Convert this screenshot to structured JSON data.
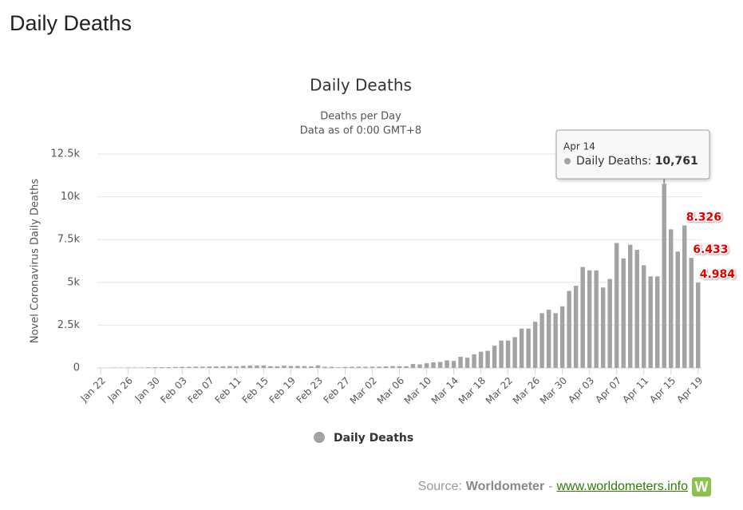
{
  "page_title": "Daily Deaths",
  "chart_data": {
    "type": "bar",
    "title": "Daily Deaths",
    "subtitle": [
      "Deaths per Day",
      "Data as of 0:00 GMT+8"
    ],
    "y_label": "Novel Coronavirus Daily Deaths",
    "categories": [
      "Jan 22",
      null,
      null,
      null,
      "Jan 26",
      null,
      null,
      null,
      "Jan 30",
      null,
      null,
      null,
      "Feb 03",
      null,
      null,
      null,
      "Feb 07",
      null,
      null,
      null,
      "Feb 11",
      null,
      null,
      null,
      "Feb 15",
      null,
      null,
      null,
      "Feb 19",
      null,
      null,
      null,
      "Feb 23",
      null,
      null,
      null,
      "Feb 27",
      null,
      null,
      null,
      "Mar 02",
      null,
      null,
      null,
      "Mar 06",
      null,
      null,
      null,
      "Mar 10",
      null,
      null,
      null,
      "Mar 14",
      null,
      null,
      null,
      "Mar 18",
      null,
      null,
      null,
      "Mar 22",
      null,
      null,
      null,
      "Mar 26",
      null,
      null,
      null,
      "Mar 30",
      null,
      null,
      null,
      "Apr 03",
      null,
      null,
      null,
      "Apr 07",
      null,
      null,
      null,
      "Apr 11",
      null,
      null,
      null,
      "Apr 15",
      null,
      null,
      null,
      "Apr 19"
    ],
    "series": [
      {
        "name": "Daily Deaths",
        "color": "#a3a3a3",
        "values": [
          0,
          8,
          16,
          14,
          26,
          26,
          26,
          38,
          43,
          46,
          45,
          58,
          64,
          66,
          73,
          73,
          86,
          89,
          97,
          108,
          97,
          121,
          143,
          143,
          142,
          105,
          98,
          136,
          116,
          118,
          109,
          97,
          150,
          71,
          64,
          37,
          58,
          67,
          72,
          66,
          72,
          77,
          93,
          110,
          104,
          101,
          232,
          207,
          273,
          327,
          350,
          444,
          410,
          650,
          600,
          800,
          950,
          1000,
          1300,
          1600,
          1600,
          1800,
          2300,
          2300,
          2700,
          3200,
          3400,
          3200,
          3600,
          4500,
          4800,
          5900,
          5700,
          5700,
          4700,
          5200,
          7300,
          6400,
          7200,
          6900,
          6000,
          5350,
          5350,
          10761,
          8100,
          6800,
          8326,
          6433,
          4984
        ],
        "value_labels": [
          null,
          null,
          null,
          null,
          null,
          null,
          null,
          null,
          null,
          null,
          null,
          null,
          null,
          null,
          null,
          null,
          null,
          null,
          null,
          null,
          null,
          null,
          null,
          null,
          null,
          null,
          null,
          null,
          null,
          null,
          null,
          null,
          null,
          null,
          null,
          null,
          null,
          null,
          null,
          null,
          null,
          null,
          null,
          null,
          null,
          null,
          null,
          null,
          null,
          null,
          null,
          null,
          null,
          null,
          null,
          null,
          null,
          null,
          null,
          null,
          null,
          null,
          null,
          null,
          null,
          null,
          null,
          null,
          null,
          null,
          null,
          null,
          null,
          null,
          null,
          null,
          null,
          null,
          null,
          null,
          null,
          null,
          null,
          null,
          null,
          null,
          "8.326",
          "6.433",
          "4.984"
        ]
      }
    ],
    "ylim": [
      0,
      12500
    ],
    "yticks": [
      0,
      {
        "value": 2500,
        "label": "2.5k"
      },
      {
        "value": 5000,
        "label": "5k"
      },
      {
        "value": 7500,
        "label": "7.5k"
      },
      {
        "value": 10000,
        "label": "10k"
      },
      {
        "value": 12500,
        "label": "12.5k"
      }
    ],
    "grid": true,
    "tooltip": {
      "category": "Apr 14",
      "label": "Daily Deaths:",
      "value": 10761,
      "value_label": "10,761",
      "index": 83
    }
  },
  "source": {
    "label": "Source:",
    "name": "Worldometer",
    "separator": "-",
    "link": "www.worldometers.info",
    "logo": "W"
  }
}
